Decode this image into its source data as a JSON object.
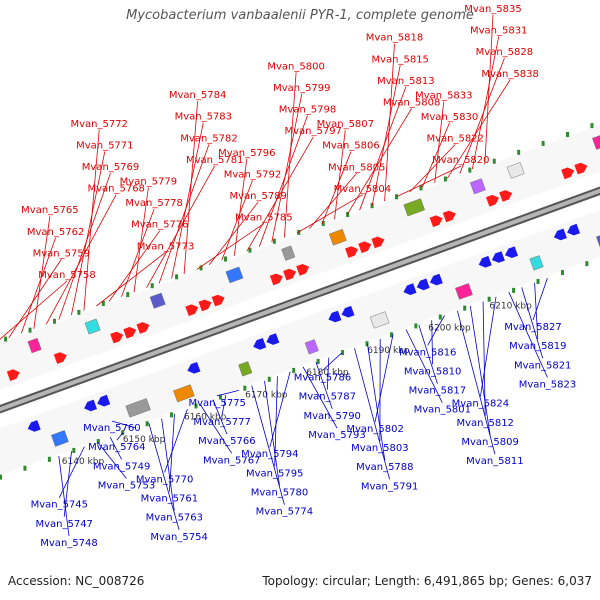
{
  "title": "Mycobacterium vanbaalenii PYR-1, complete genome",
  "accession": "Accession: NC_008726",
  "summary": "Topology: circular; Length: 6,491,865 bp; Genes: 6,037",
  "colors": {
    "forward_label": "#e00000",
    "reverse_label": "#0000cc",
    "forward_gene": "#ff1a1a",
    "reverse_gene": "#1a1aee",
    "tick": "#2e8b2e",
    "backbone": "#8c8c8c"
  },
  "scale_ticks": [
    "6140 kbp",
    "6150 kbp",
    "6160 kbp",
    "6170 kbp",
    "6180 kbp",
    "6190 kbp",
    "6200 kbp",
    "6210 kbp"
  ],
  "forward_labels": [
    "Mvan_5835",
    "Mvan_5831",
    "Mvan_5828",
    "Mvan_5838",
    "Mvan_5833",
    "Mvan_5830",
    "Mvan_5822",
    "Mvan_5820",
    "Mvan_5818",
    "Mvan_5815",
    "Mvan_5813",
    "Mvan_5808",
    "Mvan_5807",
    "Mvan_5806",
    "Mvan_5805",
    "Mvan_5804",
    "Mvan_5800",
    "Mvan_5799",
    "Mvan_5798",
    "Mvan_5797",
    "Mvan_5796",
    "Mvan_5792",
    "Mvan_5789",
    "Mvan_5785",
    "Mvan_5784",
    "Mvan_5783",
    "Mvan_5782",
    "Mvan_5781",
    "Mvan_5779",
    "Mvan_5778",
    "Mvan_5776",
    "Mvan_5773",
    "Mvan_5772",
    "Mvan_5771",
    "Mvan_5769",
    "Mvan_5768",
    "Mvan_5765",
    "Mvan_5762",
    "Mvan_5759",
    "Mvan_5758"
  ],
  "reverse_labels": [
    "Mvan_5827",
    "Mvan_5819",
    "Mvan_5821",
    "Mvan_5823",
    "Mvan_5824",
    "Mvan_5812",
    "Mvan_5809",
    "Mvan_5811",
    "Mvan_5816",
    "Mvan_5810",
    "Mvan_5817",
    "Mvan_5801",
    "Mvan_5802",
    "Mvan_5803",
    "Mvan_5788",
    "Mvan_5791",
    "Mvan_5786",
    "Mvan_5787",
    "Mvan_5790",
    "Mvan_5793",
    "Mvan_5794",
    "Mvan_5795",
    "Mvan_5780",
    "Mvan_5774",
    "Mvan_5775",
    "Mvan_5777",
    "Mvan_5766",
    "Mvan_5767",
    "Mvan_5770",
    "Mvan_5761",
    "Mvan_5763",
    "Mvan_5754",
    "Mvan_5760",
    "Mvan_5764",
    "Mvan_5749",
    "Mvan_5753",
    "Mvan_5745",
    "Mvan_5747",
    "Mvan_5748"
  ]
}
